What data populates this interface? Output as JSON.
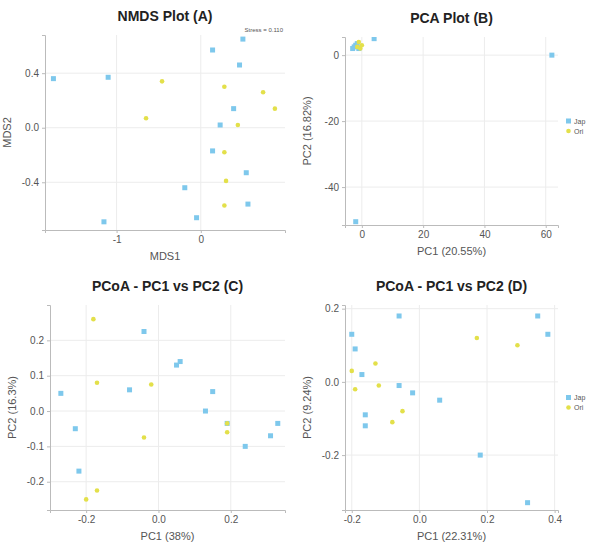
{
  "chart_data": [
    {
      "type": "scatter",
      "title": "NMDS Plot (A)",
      "x_label": "MDS1",
      "y_label": "MDS2",
      "annotation": "Stress = 0.110",
      "xlim": [
        -1.85,
        1.0
      ],
      "ylim": [
        -0.75,
        0.68
      ],
      "xticks": [
        -1,
        0
      ],
      "yticks": [
        -0.4,
        {
          "value": 0,
          "label": "0.0"
        },
        0.4
      ],
      "grid": true,
      "series": [
        {
          "color": "#7ec8ec",
          "marker": "square",
          "x": [
            -1.75,
            -1.1,
            0.14,
            0.5,
            0.46,
            0.39,
            0.23,
            0.14,
            -0.19,
            0.54,
            0.56,
            -0.05,
            -1.15
          ],
          "values": [
            0.36,
            0.37,
            0.57,
            0.65,
            0.46,
            0.14,
            0.02,
            -0.17,
            -0.44,
            -0.33,
            -0.56,
            -0.66,
            -0.69
          ]
        },
        {
          "color": "#e3e04a",
          "marker": "circle",
          "x": [
            -0.46,
            -0.65,
            0.28,
            0.74,
            0.88,
            0.44,
            0.28,
            0.3,
            0.28
          ],
          "values": [
            0.34,
            0.07,
            0.3,
            0.26,
            0.14,
            0.02,
            -0.18,
            -0.39,
            -0.57
          ]
        }
      ]
    },
    {
      "type": "scatter",
      "title": "PCA Plot (B)",
      "x_label": "PC1 (20.55%)",
      "y_label": "PC2 (16.82%)",
      "xlim": [
        -5.5,
        64
      ],
      "ylim": [
        -51.5,
        5.5
      ],
      "xticks": [
        0,
        20,
        40,
        60
      ],
      "yticks": [
        -40,
        -20,
        0
      ],
      "grid": true,
      "legend": "right",
      "series": [
        {
          "name": "Jap",
          "color": "#7ec8ec",
          "marker": "square",
          "x": [
            -3,
            -2,
            -1,
            -2.5,
            -1.5,
            4,
            62,
            -2
          ],
          "values": [
            2,
            3,
            2,
            2.5,
            3.5,
            5,
            0,
            -50.5
          ]
        },
        {
          "name": "Ori",
          "color": "#e3e04a",
          "marker": "circle",
          "x": [
            -1,
            0,
            -1.5,
            -0.5
          ],
          "values": [
            4,
            3,
            2.5,
            2
          ]
        }
      ]
    },
    {
      "type": "scatter",
      "title": "PCoA - PC1 vs PC2 (C)",
      "x_label": "PC1 (38%)",
      "y_label": "PC2 (16.3%)",
      "xlim": [
        -0.3,
        0.35
      ],
      "ylim": [
        -0.28,
        0.3
      ],
      "xticks": [
        -0.2,
        {
          "value": 0,
          "label": "0.0"
        },
        0.2
      ],
      "yticks": [
        -0.2,
        -0.1,
        {
          "value": 0,
          "label": "0.0"
        },
        0.1,
        0.2
      ],
      "grid": true,
      "series": [
        {
          "color": "#7ec8ec",
          "marker": "square",
          "x": [
            -0.27,
            -0.23,
            -0.22,
            -0.08,
            -0.04,
            0.05,
            0.06,
            0.15,
            0.13,
            0.19,
            0.24,
            0.31,
            0.33
          ],
          "values": [
            0.05,
            -0.05,
            -0.17,
            0.06,
            0.225,
            0.13,
            0.14,
            0.055,
            0.0,
            -0.035,
            -0.1,
            -0.07,
            -0.035
          ]
        },
        {
          "color": "#e3e04a",
          "marker": "circle",
          "x": [
            -0.18,
            -0.17,
            -0.02,
            -0.04,
            0.19,
            0.19,
            -0.2,
            -0.17
          ],
          "values": [
            0.26,
            0.08,
            0.075,
            -0.075,
            -0.035,
            -0.06,
            -0.25,
            -0.225
          ]
        }
      ]
    },
    {
      "type": "scatter",
      "title": "PCoA - PC1 vs PC2 (D)",
      "x_label": "PC1 (22.31%)",
      "y_label": "PC2 (9.24%)",
      "xlim": [
        -0.22,
        0.41
      ],
      "ylim": [
        -0.35,
        0.21
      ],
      "xticks": [
        -0.2,
        {
          "value": 0,
          "label": "0.0"
        },
        0.2,
        0.4
      ],
      "yticks": [
        -0.2,
        {
          "value": 0,
          "label": "0.0"
        },
        0.2
      ],
      "grid": true,
      "legend": "right",
      "series": [
        {
          "name": "Jap",
          "color": "#7ec8ec",
          "marker": "square",
          "x": [
            -0.2,
            -0.19,
            -0.17,
            -0.16,
            -0.16,
            -0.06,
            -0.06,
            -0.02,
            0.06,
            0.18,
            0.35,
            0.38,
            0.32
          ],
          "values": [
            0.13,
            0.09,
            0.02,
            -0.09,
            -0.12,
            0.18,
            -0.01,
            -0.03,
            -0.05,
            -0.2,
            0.18,
            0.13,
            -0.33
          ]
        },
        {
          "name": "Ori",
          "color": "#e3e04a",
          "marker": "circle",
          "x": [
            -0.2,
            -0.19,
            -0.13,
            -0.12,
            -0.08,
            -0.05,
            0.17,
            0.29
          ],
          "values": [
            0.03,
            -0.02,
            0.05,
            -0.01,
            -0.11,
            -0.08,
            0.12,
            0.1
          ]
        }
      ]
    }
  ]
}
